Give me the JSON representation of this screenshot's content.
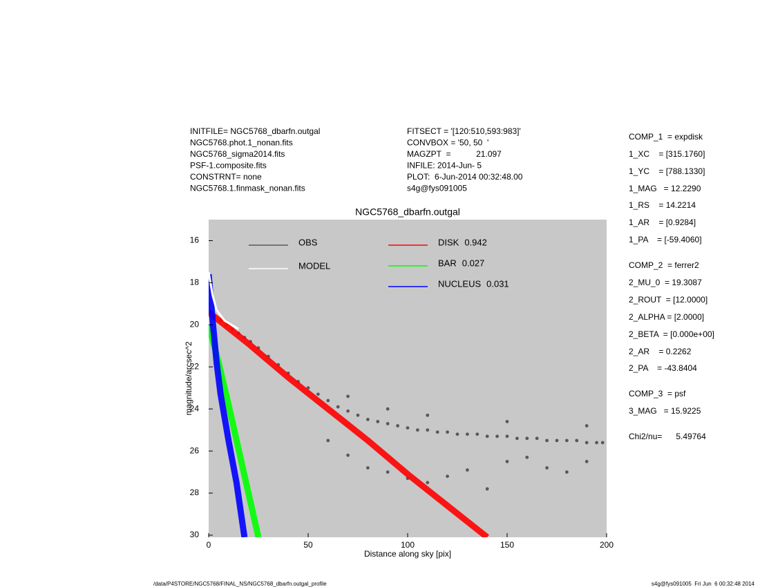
{
  "chart_data": {
    "type": "scatter",
    "title": "NGC5768_dbarfn.outgal",
    "x_label": "Distance along sky [pix]",
    "y_label": "magnitude/arcsec^2",
    "xlim": [
      0,
      200
    ],
    "ylim": [
      30.1,
      15.0
    ],
    "xticks": [
      0,
      50,
      100,
      150,
      200
    ],
    "yticks": [
      16,
      18,
      20,
      22,
      24,
      26,
      28,
      30
    ],
    "background": "#c8c8c8",
    "header_left": [
      "INITFILE= NGC5768_dbarfn.outgal",
      "NGC5768.phot.1_nonan.fits",
      "NGC5768_sigma2014.fits",
      "PSF-1.composite.fits",
      "CONSTRNT= none",
      "NGC5768.1.finmask_nonan.fits"
    ],
    "header_middle": [
      "FITSECT = '[120:510,593:983]'",
      "CONVBOX = '50, 50  '",
      "MAGZPT  =           21.097",
      "INFILE: 2014-Jun- 5",
      "PLOT:  6-Jun-2014 00:32:48.00",
      "s4g@fys091005"
    ],
    "parameters": [
      "COMP_1  = expdisk",
      "1_XC    = [315.1760]",
      "1_YC    = [788.1330]",
      "1_MAG   = 12.2290",
      "1_RS    = 14.2214",
      "1_AR    = [0.9284]",
      "1_PA    = [-59.4060]",
      "COMP_2  = ferrer2",
      "2_MU_0  = 19.3087",
      "2_ROUT  = [12.0000]",
      "2_ALPHA = [2.0000]",
      "2_BETA  = [0.000e+00]",
      "2_AR    = 0.2262",
      "2_PA    = -43.8404",
      "COMP_3  = psf",
      "3_MAG   = 15.9225",
      "Chi2/nu=      5.49764"
    ],
    "footer_left": "/data/P4STORE/NGC5768/FINAL_NS/NGC5768_dbarfn.outgal_profile",
    "footer_right": "s4g@fys091005  Fri Jun  6 00:32:48 2014",
    "series": [
      {
        "name": "OBS",
        "color": "#595959",
        "style": "points",
        "x": [
          3,
          6,
          9,
          12,
          15,
          18,
          21,
          25,
          30,
          35,
          40,
          45,
          50,
          55,
          60,
          65,
          70,
          75,
          80,
          85,
          90,
          95,
          100,
          105,
          110,
          115,
          120,
          125,
          130,
          135,
          140,
          145,
          150,
          155,
          160,
          165,
          170,
          175,
          180,
          185,
          190,
          195,
          198,
          60,
          70,
          80,
          90,
          100,
          110,
          120,
          130,
          140,
          150,
          160,
          170,
          180,
          190,
          70,
          90,
          110,
          150,
          190
        ],
        "values": [
          19.6,
          19.8,
          20.0,
          20.2,
          20.4,
          20.6,
          20.8,
          21.1,
          21.5,
          21.9,
          22.3,
          22.7,
          23.0,
          23.3,
          23.6,
          23.9,
          24.1,
          24.3,
          24.5,
          24.6,
          24.7,
          24.8,
          24.9,
          25.0,
          25.0,
          25.1,
          25.1,
          25.2,
          25.2,
          25.2,
          25.3,
          25.3,
          25.3,
          25.4,
          25.4,
          25.4,
          25.5,
          25.5,
          25.5,
          25.5,
          25.6,
          25.6,
          25.6,
          25.5,
          26.2,
          26.8,
          27.0,
          27.3,
          27.5,
          27.2,
          26.9,
          27.8,
          26.5,
          26.3,
          26.8,
          27.0,
          26.5,
          23.4,
          24.0,
          24.3,
          24.6,
          24.8
        ]
      },
      {
        "name": "MODEL",
        "color": "#ffffff",
        "style": "line",
        "x": [
          0,
          2,
          4,
          8,
          15
        ],
        "values": [
          17.5,
          18.6,
          19.3,
          19.8,
          20.2
        ]
      },
      {
        "name": "DISK",
        "fraction": 0.942,
        "color": "#ff0000",
        "style": "band",
        "x": [
          0,
          20,
          40,
          60,
          80,
          100,
          120,
          140
        ],
        "values": [
          19.4,
          20.9,
          22.5,
          24.0,
          25.5,
          27.1,
          28.6,
          30.1
        ]
      },
      {
        "name": "BAR",
        "fraction": 0.027,
        "color": "#00ff00",
        "style": "band",
        "x": [
          0,
          5,
          10,
          15,
          20,
          25
        ],
        "values": [
          20.0,
          21.8,
          23.8,
          25.9,
          28.0,
          30.1
        ]
      },
      {
        "name": "NUCLEUS",
        "fraction": 0.031,
        "color": "#0000ff",
        "style": "band",
        "x": [
          0,
          2,
          4,
          6,
          10,
          14,
          18
        ],
        "values": [
          17.6,
          19.8,
          21.8,
          23.3,
          25.5,
          27.5,
          30.1
        ]
      }
    ]
  }
}
